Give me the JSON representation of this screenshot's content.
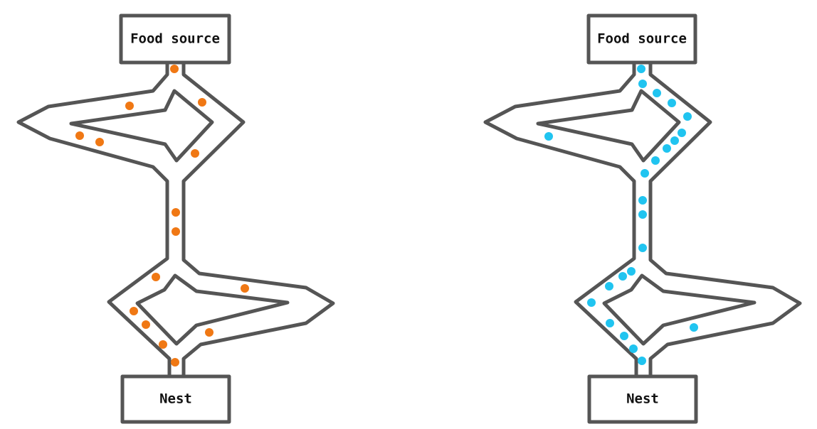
{
  "colors": {
    "outline": "#555555",
    "left_ants": "#f07814",
    "right_ants": "#20c4f0",
    "label": "#111111",
    "background": "#ffffff"
  },
  "labels": {
    "food_source": "Food source",
    "nest": "Nest"
  },
  "panels": [
    {
      "name": "left-panel",
      "ant_color": "orange",
      "ant_count": 17
    },
    {
      "name": "right-panel",
      "ant_color": "cyan",
      "ant_count": 26
    }
  ]
}
